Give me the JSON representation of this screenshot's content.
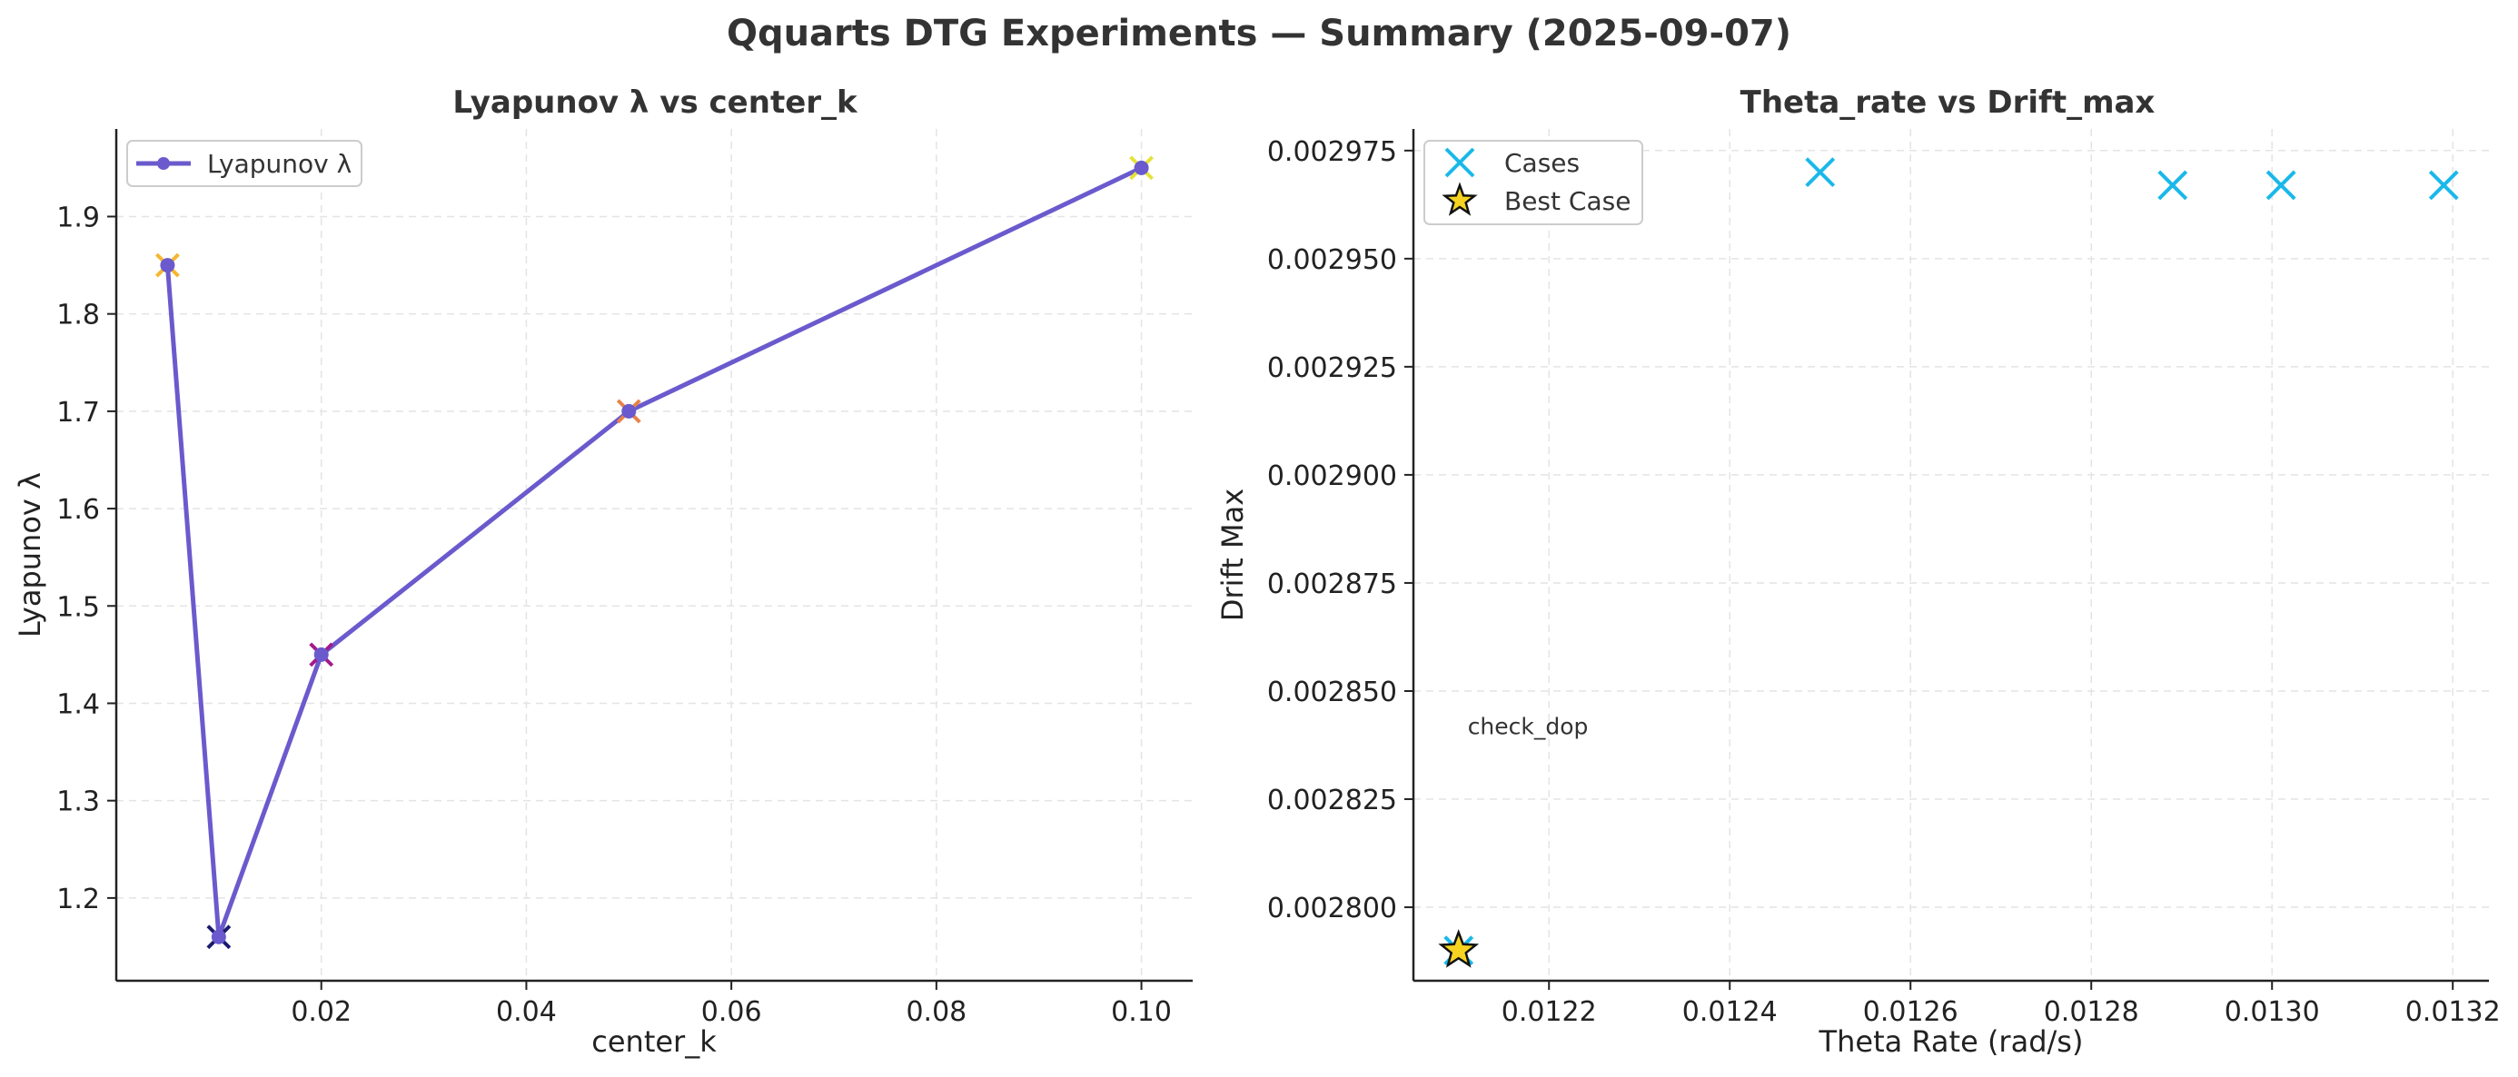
{
  "figure": {
    "title": "Qquarts DTG Experiments — Summary (2025-09-07)"
  },
  "chart_data": [
    {
      "type": "line",
      "title": "Lyapunov λ vs center_k",
      "xlabel": "center_k",
      "ylabel": "Lyapunov λ",
      "xlim": [
        0.0,
        0.105
      ],
      "ylim": [
        1.115,
        1.99
      ],
      "xticks": [
        0.02,
        0.04,
        0.06,
        0.08,
        0.1
      ],
      "xtick_labels": [
        "0.02",
        "0.04",
        "0.06",
        "0.08",
        "0.10"
      ],
      "yticks": [
        1.2,
        1.3,
        1.4,
        1.5,
        1.6,
        1.7,
        1.8,
        1.9
      ],
      "ytick_labels": [
        "1.2",
        "1.3",
        "1.4",
        "1.5",
        "1.6",
        "1.7",
        "1.8",
        "1.9"
      ],
      "grid": true,
      "legend_position": "top-left",
      "series": [
        {
          "name": "Lyapunov λ",
          "color": "#6a5acd",
          "x": [
            0.005,
            0.01,
            0.02,
            0.05,
            0.1
          ],
          "y": [
            1.85,
            1.16,
            1.45,
            1.7,
            1.95
          ]
        }
      ],
      "markers": [
        {
          "x": 0.005,
          "y": 1.85,
          "color": "#f5b731"
        },
        {
          "x": 0.01,
          "y": 1.16,
          "color": "#1a1a6e"
        },
        {
          "x": 0.02,
          "y": 1.45,
          "color": "#a4198a"
        },
        {
          "x": 0.05,
          "y": 1.7,
          "color": "#e8824a"
        },
        {
          "x": 0.1,
          "y": 1.95,
          "color": "#e5e23a"
        }
      ]
    },
    {
      "type": "scatter",
      "title": "Theta_rate vs Drift_max",
      "xlabel": "Theta Rate (rad/s)",
      "ylabel": "Drift Max",
      "xlim": [
        0.01205,
        0.01324
      ],
      "ylim": [
        0.002783,
        0.00298
      ],
      "xticks": [
        0.0122,
        0.0124,
        0.0126,
        0.0128,
        0.013,
        0.0132
      ],
      "xtick_labels": [
        "0.0122",
        "0.0124",
        "0.0126",
        "0.0128",
        "0.0130",
        "0.0132"
      ],
      "yticks": [
        0.0028,
        0.002825,
        0.00285,
        0.002875,
        0.0029,
        0.002925,
        0.00295,
        0.002975
      ],
      "ytick_labels": [
        "0.002800",
        "0.002825",
        "0.002850",
        "0.002875",
        "0.002900",
        "0.002925",
        "0.002950",
        "0.002975"
      ],
      "grid": true,
      "legend_position": "top-left",
      "series": [
        {
          "name": "Cases",
          "color": "#1ab8ea",
          "x": [
            0.0121,
            0.0125,
            0.01289,
            0.01301,
            0.01319
          ],
          "y": [
            0.00279,
            0.00297,
            0.002967,
            0.002967,
            0.002967
          ]
        },
        {
          "name": "Best Case",
          "color": "#f5d320",
          "x": [
            0.0121
          ],
          "y": [
            0.00279
          ]
        }
      ],
      "annotations": [
        {
          "text": "check_dop",
          "x": 0.01211,
          "y": 0.00284
        }
      ]
    }
  ]
}
